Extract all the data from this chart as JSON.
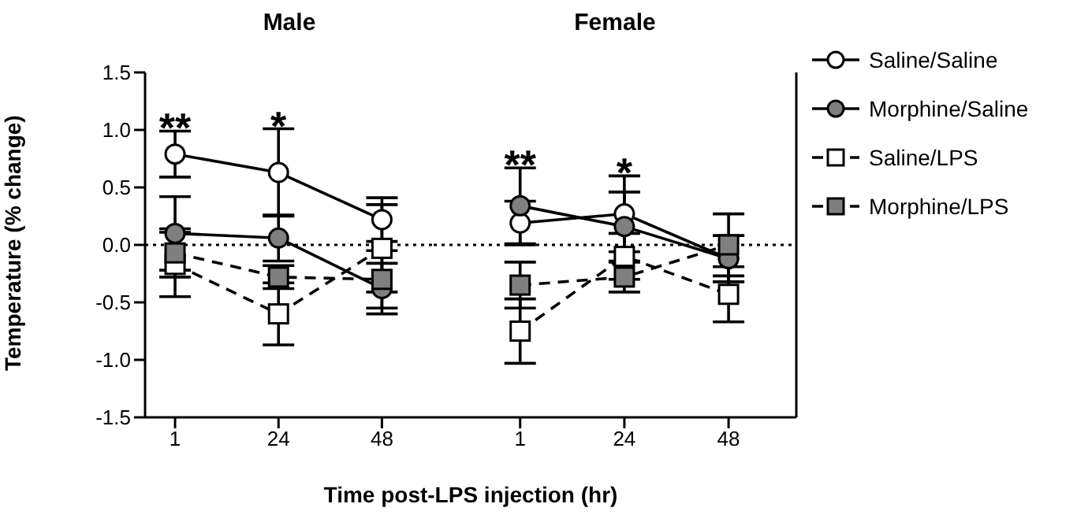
{
  "chart_data": [
    {
      "type": "line",
      "title": "Male",
      "xlabel": "Time post-LPS injection (hr)",
      "ylabel": "Temperature (% change)",
      "categories": [
        "1",
        "24",
        "48"
      ],
      "ylim": [
        -1.5,
        1.5
      ],
      "yticks": [
        -1.5,
        {
          "value": -1,
          "label": "-1.0"
        },
        -0.5,
        {
          "value": 0,
          "label": "0.0"
        },
        0.5,
        {
          "value": 1,
          "label": "1.0"
        },
        1.5
      ],
      "legend": false,
      "grid": false,
      "ref_lines": [
        {
          "axis": "y",
          "value": 0,
          "line_style": "dotted",
          "color": "#000000"
        }
      ],
      "annotations": [
        "**",
        "*"
      ],
      "series": [
        {
          "color": "#ffffff",
          "marker": "circle",
          "line_style": "solid",
          "values": [
            0.79,
            0.63,
            0.22
          ],
          "errors": [
            0.2,
            0.38,
            0.19
          ]
        },
        {
          "color": "#7f7f7f",
          "marker": "circle",
          "line_style": "solid",
          "values": [
            0.1,
            0.06,
            -0.38
          ],
          "errors": [
            0.32,
            0.2,
            0.22
          ]
        },
        {
          "color": "#ffffff",
          "marker": "square",
          "line_style": "dashed",
          "values": [
            -0.17,
            -0.6,
            -0.03
          ],
          "errors": [
            0.28,
            0.27,
            0.38
          ]
        },
        {
          "color": "#7f7f7f",
          "marker": "square",
          "line_style": "dashed",
          "values": [
            -0.07,
            -0.28,
            -0.3
          ],
          "errors": [
            0.21,
            0.1,
            0.25
          ]
        }
      ]
    },
    {
      "type": "line",
      "title": "Female",
      "categories": [
        "1",
        "24",
        "48"
      ],
      "ylim": [
        -1.5,
        1.5
      ],
      "yticks": [
        -1.5,
        -1,
        -0.5,
        0,
        0.5,
        1,
        1.5
      ],
      "tick_labels": "x",
      "legend": "right",
      "grid": false,
      "ref_lines": [
        {
          "axis": "y",
          "value": 0,
          "line_style": "dotted",
          "color": "#000000"
        }
      ],
      "annotations": [
        "**",
        "*"
      ],
      "series": [
        {
          "name": "Saline/Saline",
          "color": "#ffffff",
          "marker": "circle",
          "line_style": "solid",
          "values": [
            0.19,
            0.27,
            -0.12
          ],
          "errors": [
            0.19,
            0.33,
            0.2
          ]
        },
        {
          "name": "Morphine/Saline",
          "color": "#7f7f7f",
          "marker": "circle",
          "line_style": "solid",
          "values": [
            0.34,
            0.16,
            -0.12
          ],
          "errors": [
            0.33,
            0.3,
            0.2
          ]
        },
        {
          "name": "Saline/LPS",
          "color": "#ffffff",
          "marker": "square",
          "line_style": "dashed",
          "values": [
            -0.75,
            -0.1,
            -0.43
          ],
          "errors": [
            0.28,
            0.2,
            0.24
          ]
        },
        {
          "name": "Morphine/LPS",
          "color": "#7f7f7f",
          "marker": "square",
          "line_style": "dashed",
          "values": [
            -0.35,
            -0.28,
            0.0
          ],
          "errors": [
            0.2,
            0.13,
            0.27
          ]
        }
      ]
    }
  ]
}
